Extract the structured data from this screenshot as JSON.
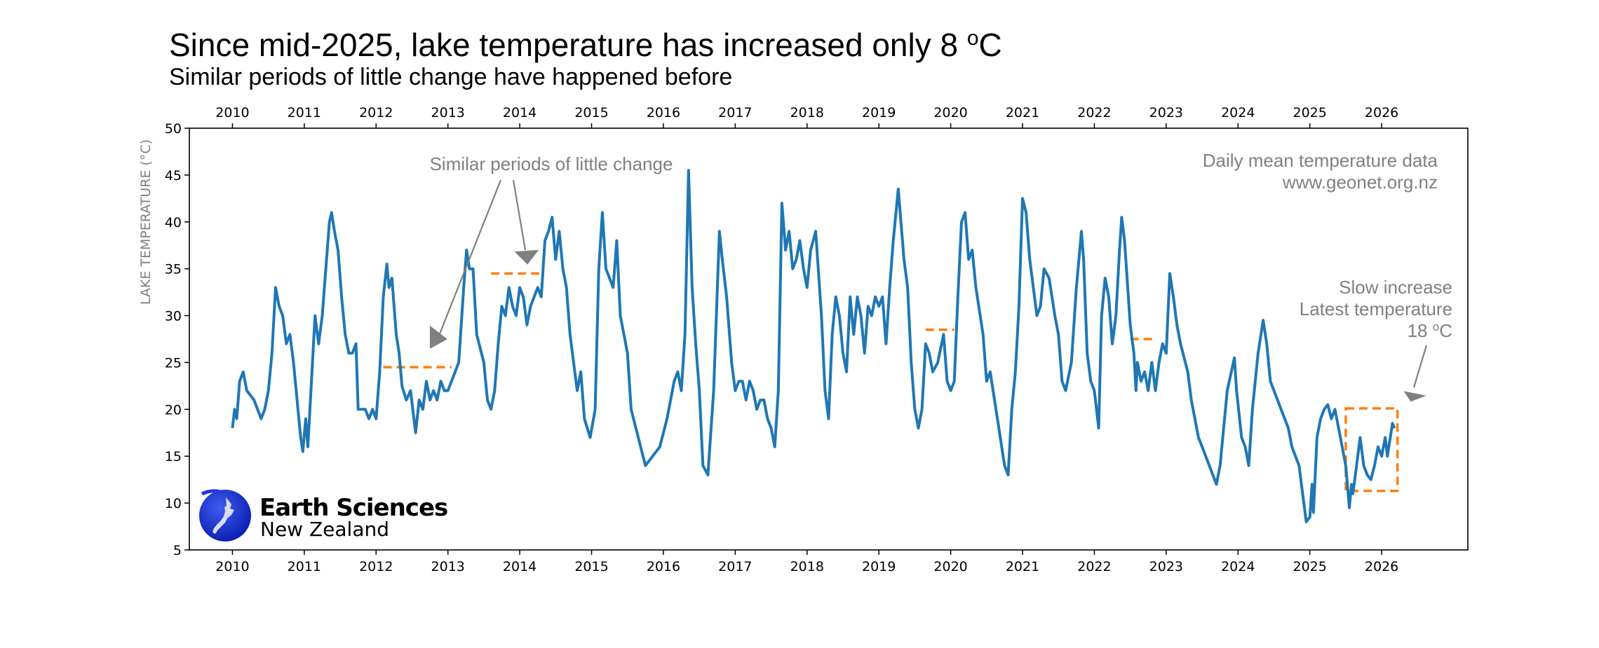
{
  "header": {
    "title_main": "Since mid-2025, lake temperature has increased only 8 ",
    "title_deg": "o",
    "title_unit": "C",
    "subtitle": "Similar periods of little change have happened before"
  },
  "annotations": {
    "similar": "Similar periods of little change",
    "source_line1": "Daily mean temperature data",
    "source_line2": "www.geonet.org.nz",
    "slow_line1": "Slow increase",
    "slow_line2": "Latest temperature",
    "slow_line3_value": "18 ",
    "slow_line3_deg": "o",
    "slow_line3_unit": "C"
  },
  "logo": {
    "line1": "Earth Sciences",
    "line2": "New Zealand"
  },
  "colors": {
    "series": "#1f77b4",
    "highlight": "#ff7f0e",
    "annotation": "#808080",
    "logo_blue": "#1a2fd6"
  },
  "chart_data": {
    "type": "line",
    "title": "Since mid-2025, lake temperature has increased only 8 oC",
    "subtitle": "Similar periods of little change have happened before",
    "ylabel": "LAKE TEMPERATURE (°C)",
    "xlabel": "",
    "xlim": [
      2009.4,
      2027.2
    ],
    "ylim": [
      5,
      50
    ],
    "xticks": [
      "2010",
      "2011",
      "2012",
      "2013",
      "2014",
      "2015",
      "2016",
      "2017",
      "2018",
      "2019",
      "2020",
      "2021",
      "2022",
      "2023",
      "2024",
      "2025",
      "2026"
    ],
    "yticks": [
      "5",
      "10",
      "15",
      "20",
      "25",
      "30",
      "35",
      "40",
      "45",
      "50"
    ],
    "grid": false,
    "legend": "none",
    "x": [
      2010.0,
      2010.03,
      2010.06,
      2010.1,
      2010.15,
      2010.2,
      2010.3,
      2010.4,
      2010.45,
      2010.5,
      2010.55,
      2010.6,
      2010.65,
      2010.7,
      2010.75,
      2010.8,
      2010.85,
      2010.9,
      2010.95,
      2010.98,
      2011.02,
      2011.05,
      2011.1,
      2011.15,
      2011.2,
      2011.25,
      2011.3,
      2011.35,
      2011.38,
      2011.42,
      2011.47,
      2011.52,
      2011.57,
      2011.62,
      2011.67,
      2011.72,
      2011.75,
      2011.8,
      2011.85,
      2011.9,
      2011.95,
      2012.0,
      2012.05,
      2012.1,
      2012.15,
      2012.18,
      2012.22,
      2012.28,
      2012.32,
      2012.36,
      2012.42,
      2012.48,
      2012.55,
      2012.6,
      2012.65,
      2012.7,
      2012.75,
      2012.8,
      2012.85,
      2012.9,
      2012.95,
      2013.0,
      2013.05,
      2013.15,
      2013.22,
      2013.26,
      2013.3,
      2013.35,
      2013.4,
      2013.5,
      2013.55,
      2013.6,
      2013.65,
      2013.7,
      2013.75,
      2013.8,
      2013.85,
      2013.9,
      2013.95,
      2014.0,
      2014.05,
      2014.1,
      2014.15,
      2014.2,
      2014.25,
      2014.3,
      2014.35,
      2014.4,
      2014.45,
      2014.5,
      2014.55,
      2014.6,
      2014.65,
      2014.7,
      2014.75,
      2014.8,
      2014.85,
      2014.9,
      2014.98,
      2015.05,
      2015.1,
      2015.15,
      2015.2,
      2015.25,
      2015.3,
      2015.35,
      2015.4,
      2015.45,
      2015.5,
      2015.55,
      2015.65,
      2015.75,
      2015.85,
      2015.95,
      2016.05,
      2016.15,
      2016.2,
      2016.25,
      2016.3,
      2016.35,
      2016.4,
      2016.45,
      2016.5,
      2016.55,
      2016.62,
      2016.7,
      2016.78,
      2016.82,
      2016.88,
      2016.95,
      2017.0,
      2017.05,
      2017.1,
      2017.15,
      2017.2,
      2017.25,
      2017.3,
      2017.35,
      2017.4,
      2017.45,
      2017.5,
      2017.55,
      2017.6,
      2017.65,
      2017.7,
      2017.75,
      2017.8,
      2017.85,
      2017.9,
      2017.95,
      2018.0,
      2018.05,
      2018.12,
      2018.2,
      2018.25,
      2018.3,
      2018.35,
      2018.4,
      2018.45,
      2018.5,
      2018.55,
      2018.6,
      2018.65,
      2018.7,
      2018.75,
      2018.8,
      2018.85,
      2018.9,
      2018.95,
      2019.0,
      2019.05,
      2019.1,
      2019.15,
      2019.2,
      2019.27,
      2019.35,
      2019.4,
      2019.45,
      2019.5,
      2019.55,
      2019.6,
      2019.65,
      2019.7,
      2019.75,
      2019.82,
      2019.9,
      2019.95,
      2020.0,
      2020.05,
      2020.1,
      2020.15,
      2020.2,
      2020.25,
      2020.3,
      2020.35,
      2020.45,
      2020.5,
      2020.55,
      2020.65,
      2020.75,
      2020.8,
      2020.85,
      2020.9,
      2020.95,
      2021.0,
      2021.05,
      2021.1,
      2021.15,
      2021.2,
      2021.25,
      2021.3,
      2021.37,
      2021.45,
      2021.5,
      2021.55,
      2021.6,
      2021.68,
      2021.75,
      2021.82,
      2021.85,
      2021.9,
      2021.95,
      2022.0,
      2022.03,
      2022.06,
      2022.1,
      2022.15,
      2022.2,
      2022.25,
      2022.3,
      2022.35,
      2022.38,
      2022.42,
      2022.5,
      2022.55,
      2022.58,
      2022.6,
      2022.65,
      2022.7,
      2022.75,
      2022.8,
      2022.85,
      2022.9,
      2022.95,
      2023.0,
      2023.05,
      2023.1,
      2023.15,
      2023.2,
      2023.3,
      2023.35,
      2023.4,
      2023.45,
      2023.5,
      2023.55,
      2023.6,
      2023.65,
      2023.7,
      2023.75,
      2023.8,
      2023.85,
      2023.95,
      2023.98,
      2024.05,
      2024.1,
      2024.15,
      2024.2,
      2024.28,
      2024.35,
      2024.4,
      2024.45,
      2024.5,
      2024.6,
      2024.7,
      2024.75,
      2024.8,
      2024.85,
      2024.9,
      2024.95,
      2025.0,
      2025.03,
      2025.05,
      2025.1,
      2025.15,
      2025.2,
      2025.25,
      2025.3,
      2025.35,
      2025.4,
      2025.45,
      2025.5,
      2025.55,
      2025.58,
      2025.6,
      2025.65,
      2025.7,
      2025.75,
      2025.8,
      2025.85,
      2025.9,
      2025.95,
      2026.0,
      2026.05,
      2026.08,
      2026.1,
      2026.15,
      2026.18
    ],
    "y": [
      18,
      20,
      19,
      23,
      24,
      22,
      21,
      19,
      20,
      22,
      26,
      33,
      31,
      30,
      27,
      28,
      25,
      21,
      17,
      15.5,
      19,
      16,
      23,
      30,
      27,
      30,
      35,
      40,
      41,
      39,
      37,
      32,
      28,
      26,
      26,
      27,
      20,
      20,
      20,
      19,
      20,
      19,
      24,
      32,
      35.5,
      33,
      34,
      28,
      26,
      22.5,
      21,
      22,
      17.5,
      21,
      20,
      23,
      21,
      22,
      21,
      23,
      22,
      22,
      23,
      25,
      33,
      37,
      35,
      35,
      28,
      25,
      21,
      20,
      22,
      27,
      31,
      30,
      33,
      31,
      30,
      33,
      32,
      29,
      31,
      32,
      33,
      32,
      38,
      39,
      40.5,
      36,
      39,
      35,
      33,
      28,
      25,
      22,
      24,
      19,
      17,
      20,
      35,
      41,
      35,
      34,
      33,
      38,
      30,
      28,
      26,
      20,
      17,
      14,
      15,
      16,
      19,
      23,
      24,
      22,
      28,
      45.5,
      33,
      27,
      22,
      14,
      13,
      22,
      39,
      36,
      32,
      25,
      22,
      23,
      23,
      21,
      23,
      22,
      20,
      21,
      21,
      19,
      18,
      16,
      22,
      42,
      37,
      39,
      35,
      36,
      38,
      35,
      33,
      37,
      39,
      30,
      22,
      19,
      28,
      32,
      30,
      26,
      24,
      32,
      28,
      32,
      30,
      26,
      31,
      30,
      32,
      31,
      32,
      27,
      33,
      38,
      43.5,
      36,
      33,
      25,
      20,
      18,
      20,
      27,
      26,
      24,
      25,
      28,
      23,
      22,
      23,
      32,
      40,
      41,
      36,
      37,
      33,
      28,
      23,
      24,
      19,
      14,
      13,
      20,
      24,
      31,
      42.5,
      41,
      36,
      33,
      30,
      31,
      35,
      34,
      30,
      28,
      23,
      22,
      25,
      33,
      39,
      36,
      26,
      23,
      22,
      20,
      18,
      30,
      34,
      32,
      27,
      30,
      37,
      40.5,
      38,
      29,
      26,
      22,
      25,
      23,
      24,
      22,
      25,
      22,
      25,
      27,
      26,
      34.5,
      32,
      29,
      27,
      24,
      21,
      19,
      17,
      16,
      15,
      14,
      13,
      12,
      14,
      18,
      22,
      25.5,
      22,
      17,
      16,
      14,
      20,
      26,
      29.5,
      27,
      23,
      22,
      20,
      18,
      16,
      15,
      14,
      11,
      8,
      8.5,
      12,
      9,
      17,
      19,
      20,
      20.5,
      19,
      20,
      18,
      16,
      14,
      9.5,
      12,
      11,
      14,
      17,
      14,
      13,
      12.5,
      14,
      16,
      15,
      17,
      15,
      16,
      18.5,
      18
    ],
    "highlights": [
      {
        "kind": "dashed-line",
        "x": [
          2012.1,
          2013.05
        ],
        "y": 24.5
      },
      {
        "kind": "dashed-line",
        "x": [
          2013.6,
          2014.3
        ],
        "y": 34.5
      },
      {
        "kind": "dashed-line",
        "x": [
          2019.65,
          2020.05
        ],
        "y": 28.5
      },
      {
        "kind": "dashed-line",
        "x": [
          2022.5,
          2022.85
        ],
        "y": 27.5
      },
      {
        "kind": "dashed-box",
        "x": [
          2025.5,
          2026.22
        ],
        "y": [
          11.3,
          20.1
        ]
      }
    ]
  }
}
